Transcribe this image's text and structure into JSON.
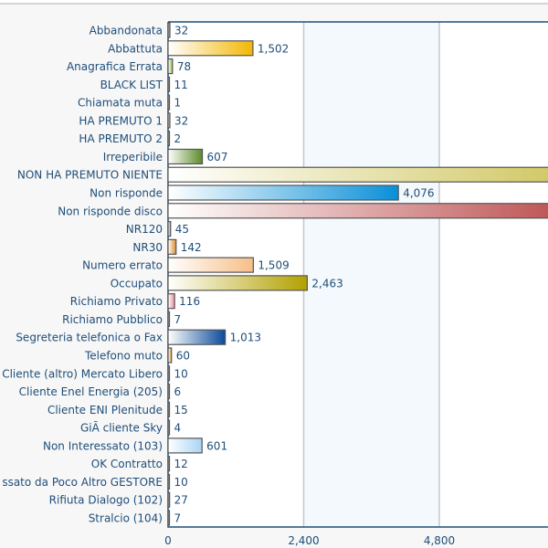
{
  "chart_data": {
    "type": "bar",
    "orientation": "horizontal",
    "categories": [
      "Abbandonata",
      "Abbattuta",
      "Anagrafica Errata",
      "BLACK LIST",
      "Chiamata muta",
      "HA PREMUTO 1",
      "HA PREMUTO 2",
      "Irreperibile",
      "NON HA PREMUTO NIENTE",
      "Non risponde",
      "Non risponde disco",
      "NR120",
      "NR30",
      "Numero errato",
      "Occupato",
      "Richiamo Privato",
      "Richiamo Pubblico",
      "Segreteria telefonica o Fax",
      "Telefono muto",
      "Cliente (altro) Mercato Libero",
      "Cliente Enel Energia (205)",
      "Cliente ENI Plenitude",
      "GiÃ cliente Sky",
      "Non Interessato (103)",
      "OK Contratto",
      "ssato da Poco Altro GESTORE",
      "Rifiuta Dialogo (102)",
      "Stralcio (104)"
    ],
    "values": [
      32,
      1502,
      78,
      11,
      1,
      32,
      2,
      607,
      null,
      4076,
      null,
      45,
      142,
      1509,
      2463,
      116,
      7,
      1013,
      60,
      10,
      6,
      15,
      4,
      601,
      12,
      10,
      27,
      7
    ],
    "value_labels": [
      "32",
      "1,502",
      "78",
      "11",
      "1",
      "32",
      "2",
      "607",
      "",
      "4,076",
      "",
      "45",
      "142",
      "1,509",
      "2,463",
      "116",
      "7",
      "1,013",
      "60",
      "10",
      "6",
      "15",
      "4",
      "601",
      "12",
      "10",
      "27",
      "7"
    ],
    "colors": [
      "#5a5a7a",
      "#f2b705",
      "#9dc24a",
      "#606060",
      "#808080",
      "#c07a7a",
      "#707070",
      "#5b8a2b",
      "#cec45a",
      "#0a8fd8",
      "#b94848",
      "#9a9ac0",
      "#d98a30",
      "#f6bf88",
      "#b3a100",
      "#ee8a9c",
      "#707070",
      "#0a4a9a",
      "#e8a040",
      "#606060",
      "#606060",
      "#404040",
      "#606060",
      "#a9d4f5",
      "#606060",
      "#606060",
      "#505050",
      "#606060"
    ],
    "xticks": [
      "0",
      "2,400",
      "4,800"
    ],
    "xtick_values": [
      0,
      2400,
      4800
    ],
    "grid": true,
    "title": "",
    "xlabel": "",
    "ylabel": ""
  }
}
